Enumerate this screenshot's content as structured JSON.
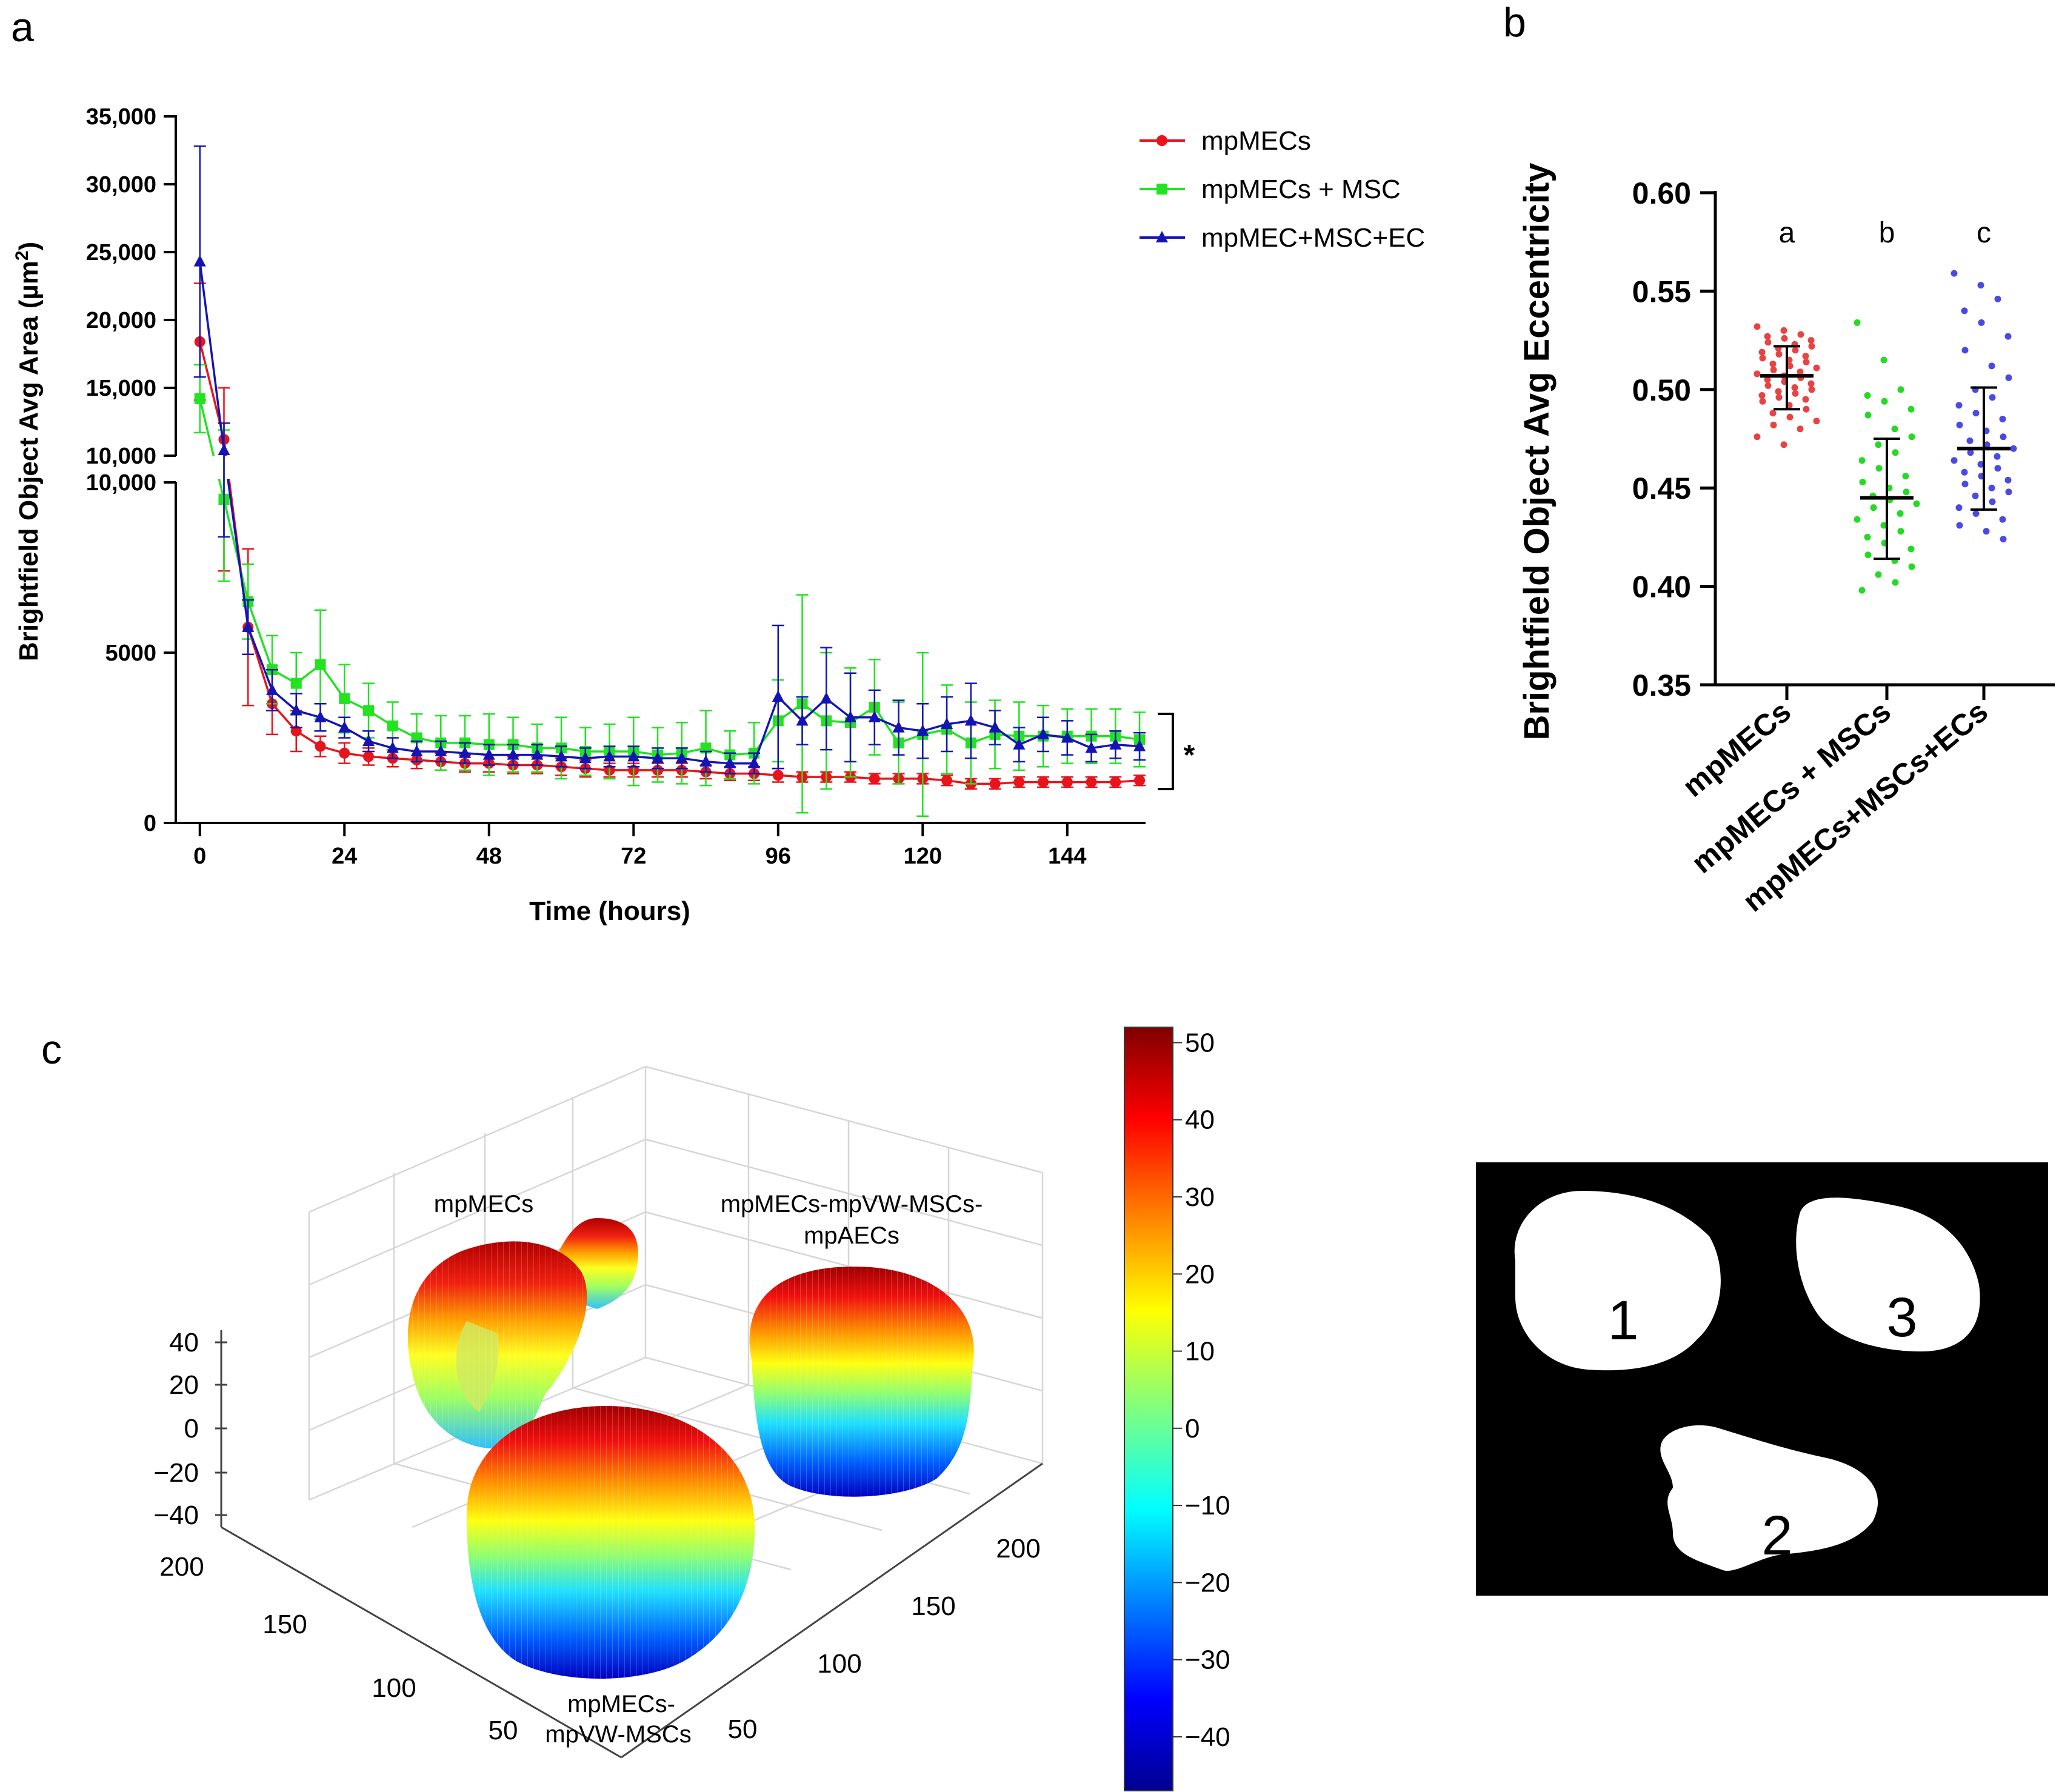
{
  "panel_letters": [
    "a",
    "b",
    "c"
  ],
  "chart_data": [
    {
      "id": "a",
      "type": "line",
      "xlabel": "Time (hours)",
      "ylabel": "Brightfield Object Avg Area (µm²)",
      "ylabel_main": "Brightfield Object Avg Area (µm",
      "ylabel_sup": "2",
      "ylabel_close": ")",
      "x_ticks": [
        "0",
        "24",
        "48",
        "72",
        "96",
        "120",
        "144"
      ],
      "xlim": [
        -4,
        157
      ],
      "y_ticks_upper": [
        "10,000",
        "15,000",
        "20,000",
        "25,000",
        "30,000",
        "35,000"
      ],
      "y_ticks_lower": [
        "0",
        "5000",
        "10,000"
      ],
      "ylim_upper": [
        10000,
        35000
      ],
      "ylim_lower": [
        0,
        10000
      ],
      "significance": "*",
      "legend_position": "top-right",
      "series": [
        {
          "name": "mpMECs",
          "color": "#e8141b",
          "marker": "circle",
          "x": [
            0,
            4,
            8,
            12,
            16,
            20,
            24,
            28,
            32,
            36,
            40,
            44,
            48,
            52,
            56,
            60,
            64,
            68,
            72,
            76,
            80,
            84,
            88,
            92,
            96,
            100,
            104,
            108,
            112,
            116,
            120,
            124,
            128,
            132,
            136,
            140,
            144,
            148,
            152,
            156
          ],
          "y": [
            18400,
            11200,
            5750,
            3500,
            2700,
            2250,
            2050,
            1950,
            1900,
            1850,
            1800,
            1750,
            1750,
            1700,
            1700,
            1650,
            1600,
            1550,
            1550,
            1550,
            1550,
            1500,
            1450,
            1450,
            1400,
            1350,
            1350,
            1350,
            1300,
            1300,
            1300,
            1250,
            1150,
            1150,
            1200,
            1200,
            1200,
            1200,
            1200,
            1250
          ],
          "err": [
            4300,
            3800,
            2300,
            900,
            600,
            300,
            300,
            250,
            250,
            250,
            250,
            250,
            250,
            250,
            250,
            250,
            250,
            200,
            200,
            200,
            200,
            200,
            200,
            200,
            200,
            150,
            150,
            150,
            150,
            150,
            150,
            150,
            150,
            150,
            150,
            150,
            150,
            150,
            150,
            150
          ]
        },
        {
          "name": "mpMECs + MSC",
          "color": "#22e222",
          "marker": "square",
          "x": [
            0,
            4,
            8,
            12,
            16,
            20,
            24,
            28,
            32,
            36,
            40,
            44,
            48,
            52,
            56,
            60,
            64,
            68,
            72,
            76,
            80,
            84,
            88,
            92,
            96,
            100,
            104,
            108,
            112,
            116,
            120,
            124,
            128,
            132,
            136,
            140,
            144,
            148,
            152,
            156
          ],
          "y": [
            14200,
            9500,
            6500,
            4500,
            4100,
            4650,
            3650,
            3300,
            2850,
            2500,
            2350,
            2350,
            2300,
            2300,
            2200,
            2200,
            2100,
            2100,
            2100,
            2000,
            2050,
            2200,
            2000,
            2050,
            3000,
            3500,
            3000,
            2950,
            3400,
            2350,
            2600,
            2750,
            2350,
            2600,
            2550,
            2550,
            2550,
            2550,
            2550,
            2450
          ],
          "err": [
            2500,
            2400,
            1100,
            1000,
            900,
            1600,
            1000,
            800,
            700,
            700,
            800,
            800,
            900,
            800,
            700,
            900,
            700,
            800,
            1000,
            800,
            900,
            1100,
            700,
            900,
            1200,
            3200,
            2000,
            1600,
            1400,
            1200,
            2400,
            1300,
            1200,
            1000,
            1000,
            900,
            800,
            800,
            800,
            800
          ]
        },
        {
          "name": "mpMEC+MSC+EC",
          "color": "#1414b4",
          "marker": "triangle",
          "x": [
            0,
            4,
            8,
            12,
            16,
            20,
            24,
            28,
            32,
            36,
            40,
            44,
            48,
            52,
            56,
            60,
            64,
            68,
            72,
            76,
            80,
            84,
            88,
            92,
            96,
            100,
            104,
            108,
            112,
            116,
            120,
            124,
            128,
            132,
            136,
            140,
            144,
            148,
            152,
            156
          ],
          "y": [
            24300,
            10400,
            5750,
            3900,
            3300,
            3100,
            2800,
            2400,
            2200,
            2100,
            2100,
            2050,
            2000,
            2000,
            2000,
            1950,
            1900,
            1950,
            1950,
            1900,
            1900,
            1800,
            1750,
            1750,
            3700,
            3000,
            3650,
            3100,
            3100,
            2800,
            2700,
            2900,
            3000,
            2800,
            2300,
            2600,
            2500,
            2200,
            2300,
            2250
          ],
          "err": [
            8500,
            2000,
            800,
            600,
            500,
            400,
            300,
            300,
            300,
            300,
            300,
            300,
            300,
            300,
            300,
            300,
            300,
            300,
            300,
            300,
            300,
            300,
            300,
            300,
            2100,
            700,
            1500,
            1300,
            800,
            800,
            800,
            800,
            1100,
            500,
            500,
            500,
            500,
            400,
            400,
            400
          ]
        }
      ]
    },
    {
      "id": "b",
      "type": "scatter",
      "ylabel": "Brightfield Object Avg Eccentricity",
      "y_ticks": [
        "0.35",
        "0.40",
        "0.45",
        "0.50",
        "0.55",
        "0.60"
      ],
      "ylim": [
        0.35,
        0.6
      ],
      "categories": [
        "mpMECs",
        "mpMECs + MSCs",
        "mpMECs+MSCs+ECs"
      ],
      "significance_letters": [
        "a",
        "b",
        "c"
      ],
      "groups": [
        {
          "name": "mpMECs",
          "color": "#e84343",
          "mean": 0.507,
          "sd_low": 0.49,
          "sd_high": 0.522,
          "values": [
            0.532,
            0.53,
            0.528,
            0.527,
            0.526,
            0.525,
            0.524,
            0.523,
            0.522,
            0.521,
            0.52,
            0.519,
            0.518,
            0.517,
            0.516,
            0.515,
            0.514,
            0.513,
            0.512,
            0.511,
            0.51,
            0.509,
            0.508,
            0.507,
            0.506,
            0.505,
            0.504,
            0.503,
            0.502,
            0.501,
            0.5,
            0.499,
            0.498,
            0.497,
            0.496,
            0.495,
            0.494,
            0.492,
            0.49,
            0.488,
            0.486,
            0.484,
            0.482,
            0.48,
            0.476,
            0.472
          ]
        },
        {
          "name": "mpMECs + MSCs",
          "color": "#26d926",
          "mean": 0.445,
          "sd_low": 0.414,
          "sd_high": 0.475,
          "values": [
            0.534,
            0.515,
            0.5,
            0.497,
            0.494,
            0.49,
            0.487,
            0.48,
            0.476,
            0.472,
            0.468,
            0.464,
            0.46,
            0.456,
            0.453,
            0.45,
            0.448,
            0.446,
            0.444,
            0.442,
            0.44,
            0.437,
            0.434,
            0.431,
            0.428,
            0.425,
            0.422,
            0.419,
            0.416,
            0.413,
            0.41,
            0.406,
            0.402,
            0.398
          ]
        },
        {
          "name": "mpMECs+MSCs+ECs",
          "color": "#4a4ae2",
          "mean": 0.47,
          "sd_low": 0.439,
          "sd_high": 0.501,
          "values": [
            0.559,
            0.553,
            0.546,
            0.54,
            0.534,
            0.527,
            0.52,
            0.512,
            0.506,
            0.5,
            0.496,
            0.492,
            0.488,
            0.485,
            0.482,
            0.479,
            0.476,
            0.474,
            0.472,
            0.47,
            0.468,
            0.466,
            0.464,
            0.462,
            0.46,
            0.458,
            0.456,
            0.454,
            0.452,
            0.45,
            0.448,
            0.446,
            0.443,
            0.44,
            0.437,
            0.434,
            0.431,
            0.428,
            0.424
          ]
        }
      ]
    },
    {
      "id": "c",
      "type": "surface-3d",
      "x_ticks": [
        "50",
        "100",
        "150",
        "200"
      ],
      "y_ticks": [
        "50",
        "100",
        "150",
        "200"
      ],
      "z_ticks": [
        "40",
        "20",
        "0",
        "−20",
        "−40"
      ],
      "colorbar_ticks": [
        "50",
        "40",
        "30",
        "20",
        "10",
        "0",
        "−10",
        "−20",
        "−30",
        "−40"
      ],
      "colorbar_range": [
        -47,
        52
      ],
      "object_labels": {
        "mpmecs": "mpMECs",
        "triple_line1": "mpMECs-mpVW-MSCs-",
        "triple_line2": "mpAECs",
        "double_line1": "mpMECs-",
        "double_line2": "mpVW-MSCs"
      },
      "mask_labels": [
        "1",
        "3",
        "2"
      ]
    }
  ]
}
